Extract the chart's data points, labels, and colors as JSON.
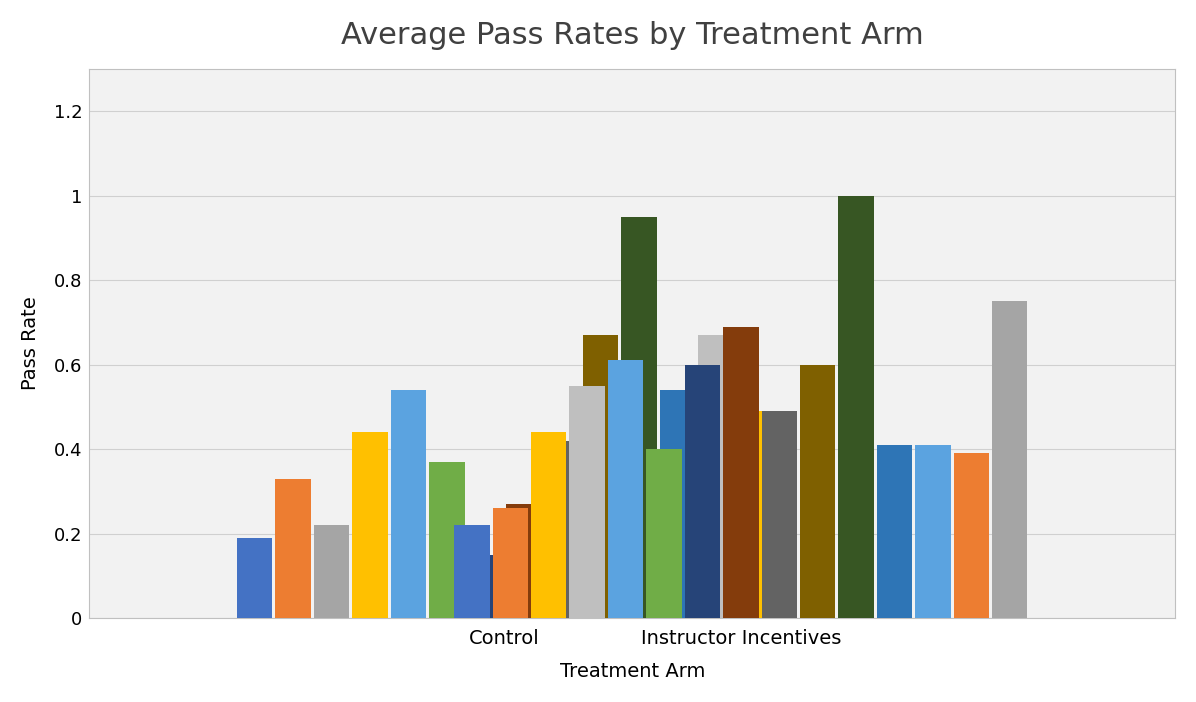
{
  "title": "Average Pass Rates by Treatment Arm",
  "xlabel": "Treatment Arm",
  "ylabel": "Pass Rate",
  "ylim": [
    0,
    1.3
  ],
  "yticks": [
    0,
    0.2,
    0.4,
    0.6,
    0.8,
    1.0,
    1.2
  ],
  "group_labels": [
    "Control",
    "Instructor Incentives"
  ],
  "control_values": [
    0.19,
    0.33,
    0.22,
    0.44,
    0.54,
    0.37,
    0.15,
    0.27,
    0.42,
    0.67,
    0.95,
    0.54,
    0.67,
    0.49
  ],
  "control_colors": [
    "#4472C4",
    "#ED7D31",
    "#A5A5A5",
    "#FFC000",
    "#5BA3E0",
    "#70AD47",
    "#264478",
    "#843C0C",
    "#636363",
    "#7F6000",
    "#375623",
    "#2E75B6",
    "#BFBFBF",
    "#FFC000"
  ],
  "incentives_values": [
    0.22,
    0.26,
    0.44,
    0.55,
    0.61,
    0.4,
    0.6,
    0.69,
    0.49,
    0.6,
    1.0,
    0.41,
    0.41,
    0.39,
    0.75
  ],
  "incentives_colors": [
    "#4472C4",
    "#ED7D31",
    "#FFC000",
    "#BFBFBF",
    "#5BA3E0",
    "#70AD47",
    "#264478",
    "#843C0C",
    "#636363",
    "#7F6000",
    "#375623",
    "#2E75B6",
    "#5BA3E0",
    "#ED7D31",
    "#A5A5A5"
  ],
  "title_fontsize": 22,
  "axis_label_fontsize": 14,
  "tick_fontsize": 13,
  "title_color": "#404040",
  "grid_color": "#D0D0D0",
  "background_color": "#F2F2F2"
}
